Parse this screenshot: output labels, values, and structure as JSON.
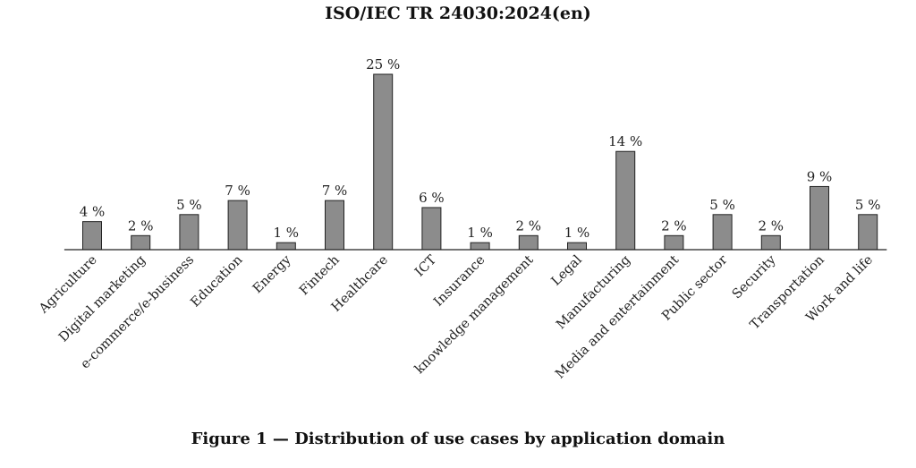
{
  "header": {
    "document_id": "ISO/IEC TR 24030:2024(en)"
  },
  "figure": {
    "caption": "Figure 1 — Distribution of use cases by application domain"
  },
  "chart_data": {
    "type": "bar",
    "title": "",
    "xlabel": "",
    "ylabel": "",
    "ylim": [
      0,
      25
    ],
    "value_suffix": " %",
    "bar_color": "#8c8c8c",
    "categories": [
      "Agriculture",
      "Digital marketing",
      "e-commerce/e-business",
      "Education",
      "Energy",
      "Fintech",
      "Healthcare",
      "ICT",
      "Insurance",
      "knowledge management",
      "Legal",
      "Manufacturing",
      "Media and entertainment",
      "Public sector",
      "Security",
      "Transportation",
      "Work and life"
    ],
    "values": [
      4,
      2,
      5,
      7,
      1,
      7,
      25,
      6,
      1,
      2,
      1,
      14,
      2,
      5,
      2,
      9,
      5
    ]
  }
}
